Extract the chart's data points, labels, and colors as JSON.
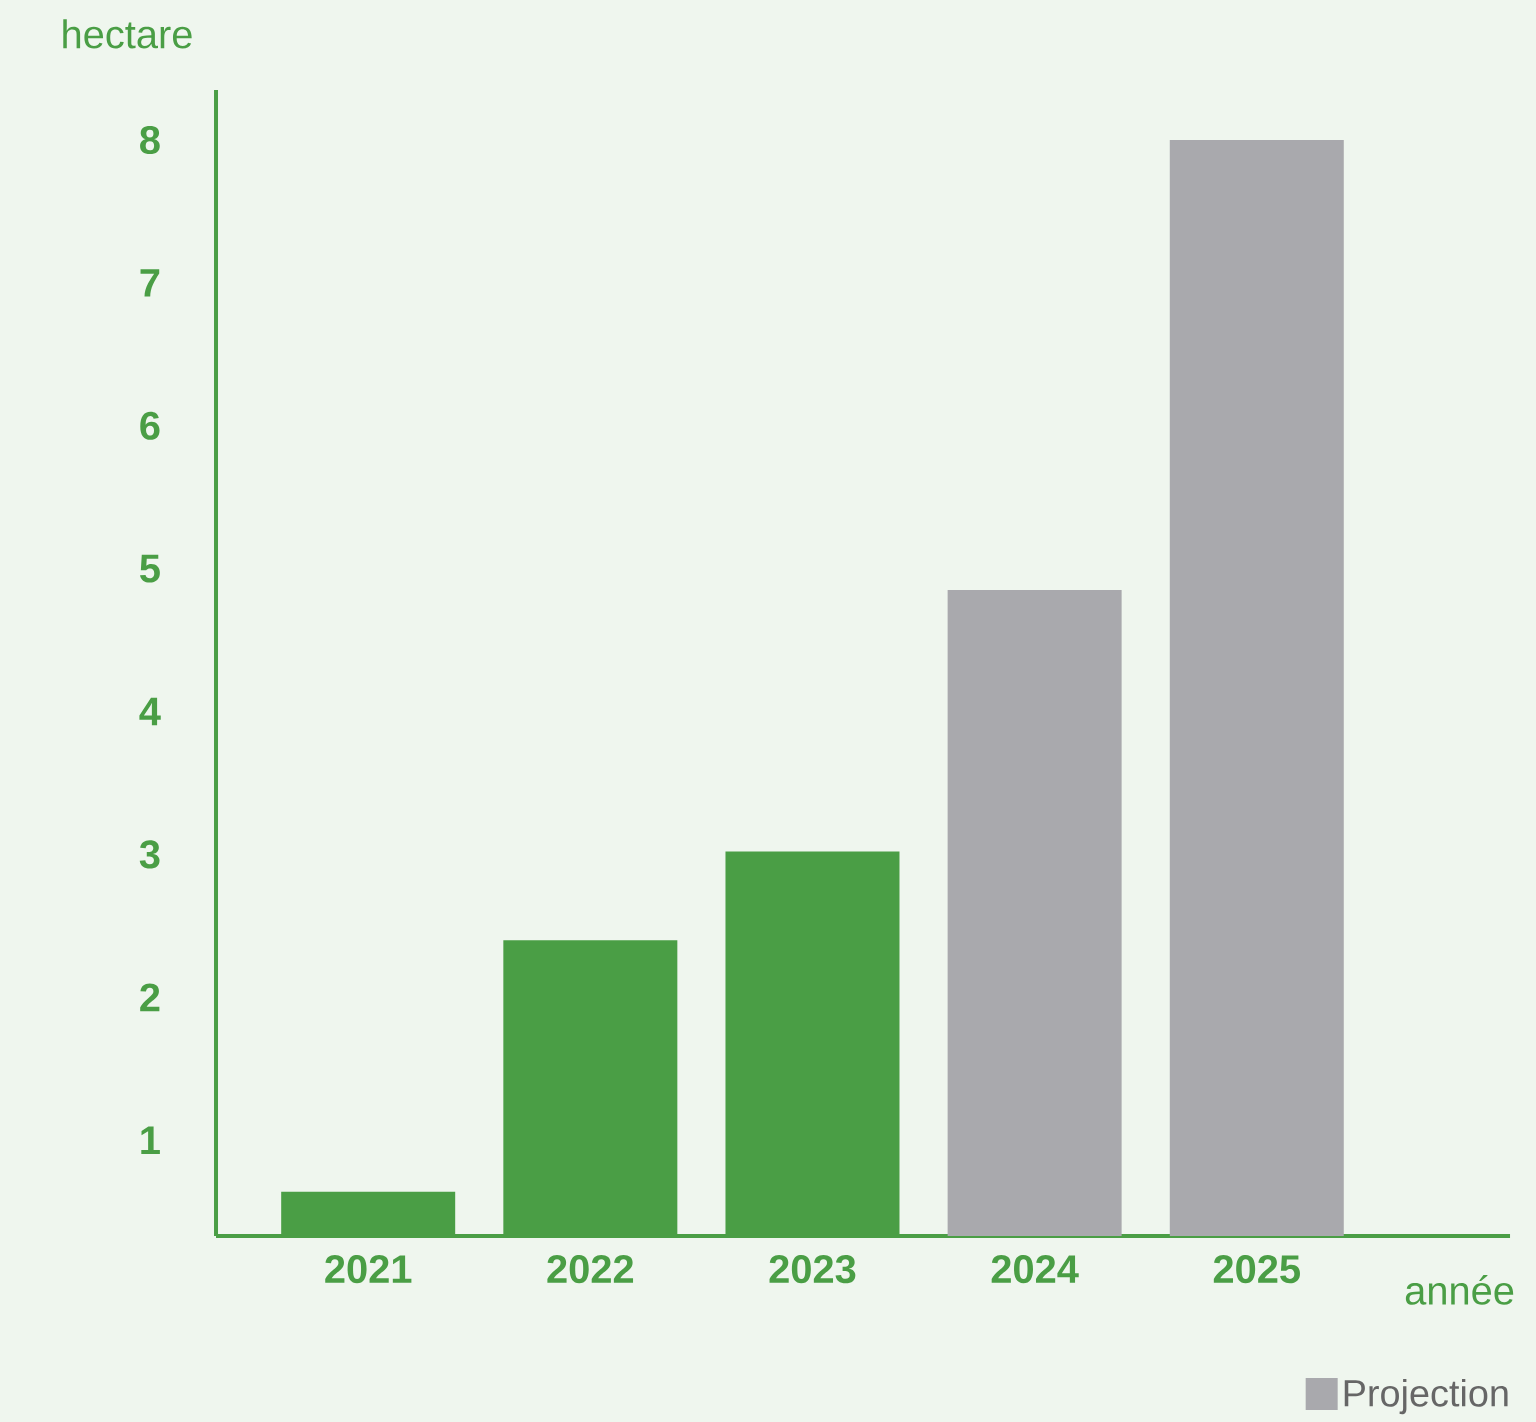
{
  "chart_data": {
    "type": "bar",
    "xlabel": "année",
    "ylabel": "hectare",
    "categories": [
      "2021",
      "2022",
      "2023",
      "2024",
      "2025"
    ],
    "series": [
      {
        "color": "#4a9e45",
        "values": [
          0.64,
          2.4,
          3.02,
          null,
          null
        ]
      },
      {
        "name": "Projection",
        "color": "#a9a9ad",
        "values": [
          null,
          null,
          null,
          4.85,
          8.0
        ]
      }
    ],
    "ylim": [
      0.33,
      8.35
    ],
    "yticks": [
      1,
      2,
      3,
      4,
      5,
      6,
      7,
      8
    ],
    "legend": "bottom right"
  }
}
